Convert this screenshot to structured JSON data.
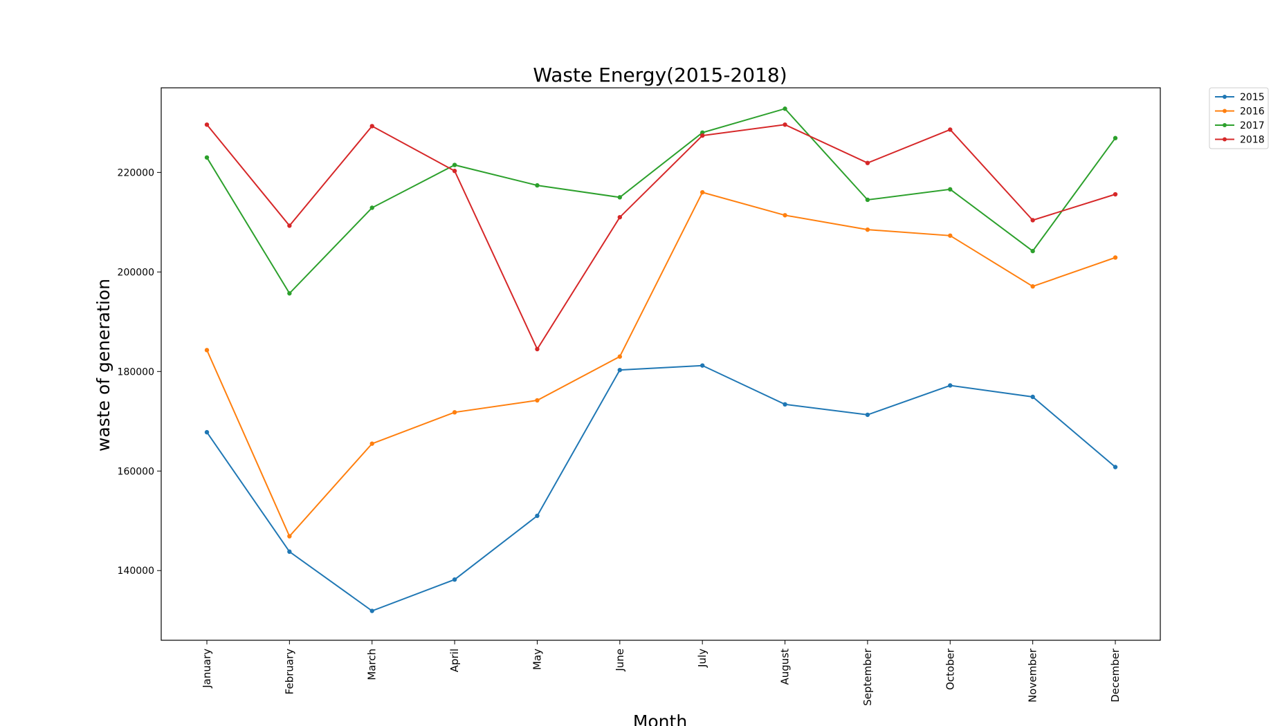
{
  "chart_data": {
    "type": "line",
    "title": "Waste Energy(2015-2018)",
    "xlabel": "Month",
    "ylabel": "waste of generation",
    "categories": [
      "January",
      "February",
      "March",
      "April",
      "May",
      "June",
      "July",
      "August",
      "September",
      "October",
      "November",
      "December"
    ],
    "ylim": [
      126000,
      237000
    ],
    "yticks": [
      140000,
      160000,
      180000,
      200000,
      220000
    ],
    "grid": false,
    "legend_position": "outside-top-right",
    "series": [
      {
        "name": "2015",
        "color": "#1f77b4",
        "values": [
          167800,
          143800,
          131900,
          138200,
          151000,
          180300,
          181200,
          173400,
          171300,
          177200,
          174900,
          160800
        ]
      },
      {
        "name": "2016",
        "color": "#ff7f0e",
        "values": [
          184300,
          146900,
          165500,
          171800,
          174200,
          183000,
          216000,
          211400,
          208500,
          207300,
          197100,
          202900
        ]
      },
      {
        "name": "2017",
        "color": "#2ca02c",
        "values": [
          223000,
          195700,
          212900,
          221500,
          217400,
          215000,
          228000,
          232800,
          214500,
          216600,
          204200,
          226900
        ]
      },
      {
        "name": "2018",
        "color": "#d62728",
        "values": [
          229600,
          209300,
          229300,
          220300,
          184500,
          211000,
          227400,
          229600,
          221900,
          228600,
          210400,
          215600
        ]
      }
    ]
  }
}
